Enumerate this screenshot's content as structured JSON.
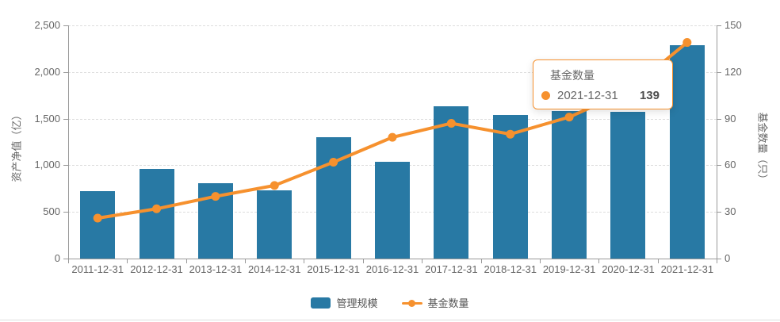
{
  "chart_data": {
    "type": "combo",
    "categories": [
      "2011-12-31",
      "2012-12-31",
      "2013-12-31",
      "2014-12-31",
      "2015-12-31",
      "2016-12-31",
      "2017-12-31",
      "2018-12-31",
      "2019-12-31",
      "2020-12-31",
      "2021-12-31"
    ],
    "series": [
      {
        "name": "管理规模",
        "type": "bar",
        "axis": "left",
        "color": "#2879a4",
        "values": [
          725,
          965,
          810,
          735,
          1305,
          1040,
          1630,
          1535,
          1585,
          1575,
          2285
        ]
      },
      {
        "name": "基金数量",
        "type": "line",
        "axis": "right",
        "color": "#f6912e",
        "values": [
          26,
          32,
          40,
          47,
          62,
          78,
          87,
          80,
          91,
          108,
          139
        ]
      }
    ],
    "left_axis": {
      "name": "资产净值（亿）",
      "min": 0,
      "max": 2500,
      "ticks": [
        0,
        500,
        1000,
        1500,
        2000,
        2500
      ],
      "tick_labels": [
        "0",
        "500",
        "1,000",
        "1,500",
        "2,000",
        "2,500"
      ]
    },
    "right_axis": {
      "name": "基金数量（只）",
      "min": 0,
      "max": 150,
      "ticks": [
        0,
        30,
        60,
        90,
        120,
        150
      ],
      "tick_labels": [
        "0",
        "30",
        "60",
        "90",
        "120",
        "150"
      ]
    },
    "grid": {
      "horizontal_lines": true,
      "style": "dashed"
    },
    "legend_position": "bottom"
  },
  "tooltip": {
    "title": "基金数量",
    "date": "2021-12-31",
    "value": "139"
  },
  "legend": {
    "items": [
      {
        "label": "管理规模"
      },
      {
        "label": "基金数量"
      }
    ]
  },
  "colors": {
    "bar": "#2879a4",
    "line": "#f6912e",
    "axis": "#999999",
    "grid": "#dddddd",
    "text": "#666666",
    "tooltip_border": "#f6912e",
    "divider": "#dedede"
  }
}
